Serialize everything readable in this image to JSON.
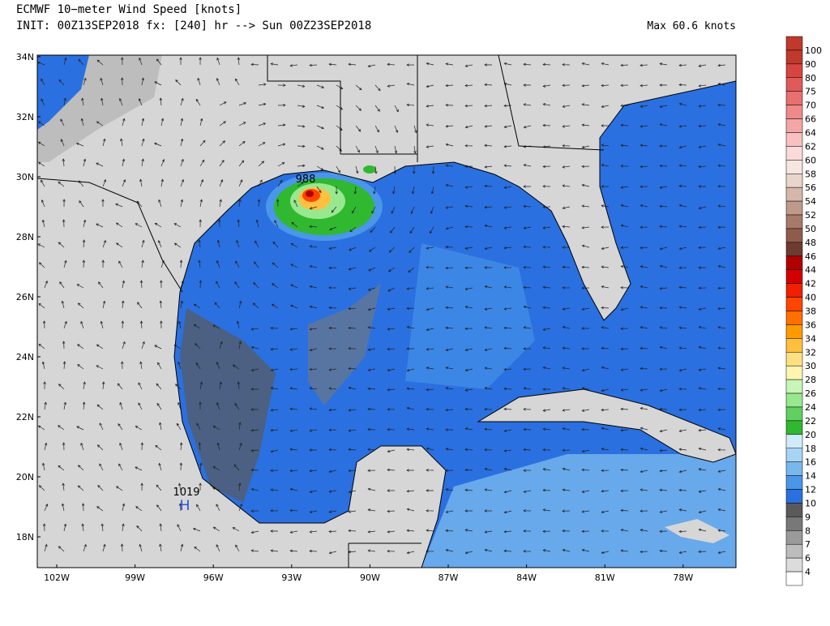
{
  "title": {
    "line1": "ECMWF 10−meter Wind Speed [knots]",
    "line2": "INIT: 00Z13SEP2018 fx: [240] hr --> Sun 00Z23SEP2018"
  },
  "max_label": "Max 60.6 knots",
  "lat_labels": [
    "34N",
    "32N",
    "30N",
    "28N",
    "26N",
    "24N",
    "22N",
    "20N",
    "18N"
  ],
  "lon_labels": [
    "102W",
    "99W",
    "96W",
    "93W",
    "90W",
    "87W",
    "84W",
    "81W",
    "78W"
  ],
  "annotations": {
    "low_pressure": "988",
    "high_pressure": "1019",
    "high_marker": "H"
  },
  "colorbar": {
    "labels": [
      "100",
      "90",
      "80",
      "75",
      "70",
      "66",
      "64",
      "62",
      "60",
      "58",
      "56",
      "54",
      "52",
      "50",
      "48",
      "46",
      "44",
      "42",
      "40",
      "38",
      "36",
      "34",
      "32",
      "30",
      "28",
      "26",
      "24",
      "22",
      "20",
      "18",
      "16",
      "14",
      "12",
      "10",
      "9",
      "8",
      "7",
      "6",
      "4"
    ],
    "colors": [
      "#c0392b",
      "#d64541",
      "#e05a5a",
      "#e87070",
      "#ef8a8a",
      "#f4a5a5",
      "#f8c0c0",
      "#fbdada",
      "#f5e6e0",
      "#e8d5cc",
      "#d4b8aa",
      "#bf9a8a",
      "#a87a6a",
      "#8f5c4c",
      "#6e3b2e",
      "#b00000",
      "#d40000",
      "#f02000",
      "#ff4500",
      "#ff7000",
      "#ff9a00",
      "#ffc040",
      "#ffe080",
      "#fff5b0",
      "#c8f5b8",
      "#98e890",
      "#60d060",
      "#30b830",
      "#d0ecfa",
      "#a8d4f4",
      "#78b8ee",
      "#4a96e8",
      "#2a70e0",
      "#5a5a5a",
      "#787878",
      "#9a9a9a",
      "#bcbcbc",
      "#dcdcdc",
      "#ffffff"
    ]
  }
}
